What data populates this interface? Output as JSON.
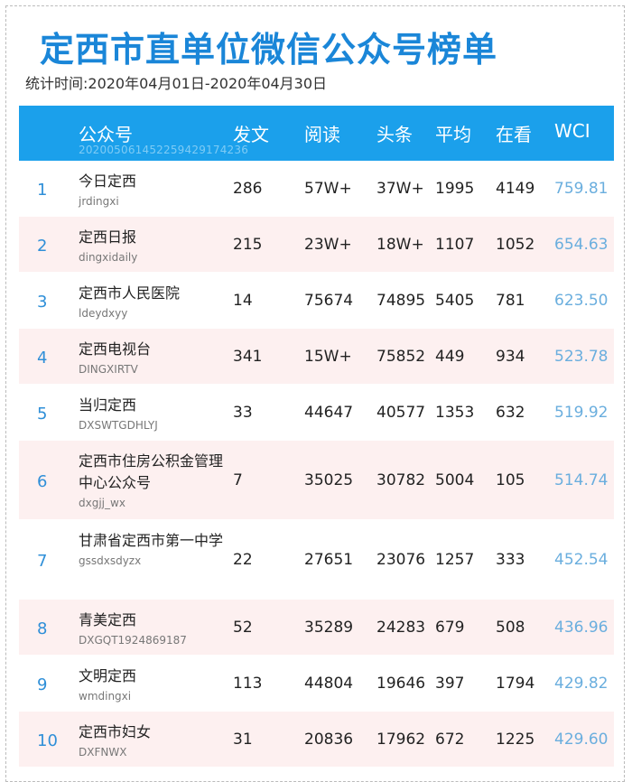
{
  "header": {
    "title": "定西市直单位微信公众号榜单",
    "subtitle": "统计时间:2020年04月01日-2020年04月30日"
  },
  "table": {
    "columns": {
      "name": "公众号",
      "fawen": "发文",
      "yuedu": "阅读",
      "toutiao": "头条",
      "pingjun": "平均",
      "zaikan": "在看",
      "wci": "WCI"
    },
    "header_id": "20200506145225942917423​6",
    "rows": [
      {
        "rank": "1",
        "name": "今日定西",
        "account": "jrdingxi",
        "fawen": "286",
        "yuedu": "57W+",
        "toutiao": "37W+",
        "pingjun": "1995",
        "zaikan": "4149",
        "wci": "759.81"
      },
      {
        "rank": "2",
        "name": "定西日报",
        "account": "dingxidaily",
        "fawen": "215",
        "yuedu": "23W+",
        "toutiao": "18W+",
        "pingjun": "1107",
        "zaikan": "1052",
        "wci": "654.63"
      },
      {
        "rank": "3",
        "name": "定西市人民医院",
        "account": "ldeydxyy",
        "fawen": "14",
        "yuedu": "75674",
        "toutiao": "74895",
        "pingjun": "5405",
        "zaikan": "781",
        "wci": "623.50"
      },
      {
        "rank": "4",
        "name": "定西电视台",
        "account": "DINGXIRTV",
        "fawen": "341",
        "yuedu": "15W+",
        "toutiao": "75852",
        "pingjun": "449",
        "zaikan": "934",
        "wci": "523.78"
      },
      {
        "rank": "5",
        "name": "当归定西",
        "account": "DXSWTGDHLYJ",
        "fawen": "33",
        "yuedu": "44647",
        "toutiao": "40577",
        "pingjun": "1353",
        "zaikan": "632",
        "wci": "519.92"
      },
      {
        "rank": "6",
        "name": "定西市住房公积金管理中心公众号",
        "account": "dxgjj_wx",
        "fawen": "7",
        "yuedu": "35025",
        "toutiao": "30782",
        "pingjun": "5004",
        "zaikan": "105",
        "wci": "514.74"
      },
      {
        "rank": "7",
        "name": "甘肃省定西市第一中学",
        "account": "gssdxsdyzx",
        "fawen": "22",
        "yuedu": "27651",
        "toutiao": "23076",
        "pingjun": "1257",
        "zaikan": "333",
        "wci": "452.54"
      },
      {
        "rank": "8",
        "name": "青美定西",
        "account": "DXGQT1924869187",
        "fawen": "52",
        "yuedu": "35289",
        "toutiao": "24283",
        "pingjun": "679",
        "zaikan": "508",
        "wci": "436.96"
      },
      {
        "rank": "9",
        "name": "文明定西",
        "account": "wmdingxi",
        "fawen": "113",
        "yuedu": "44804",
        "toutiao": "19646",
        "pingjun": "397",
        "zaikan": "1794",
        "wci": "429.82"
      },
      {
        "rank": "10",
        "name": "定西市妇女",
        "account": "DXFNWX",
        "fawen": "31",
        "yuedu": "20836",
        "toutiao": "17962",
        "pingjun": "672",
        "zaikan": "1225",
        "wci": "429.60"
      }
    ]
  },
  "colors": {
    "title": "#1a86d8",
    "header_bg": "#1ba0eb",
    "row_alt_bg": "#fdf0f0",
    "rank": "#2f8fd8",
    "wci": "#6aaede"
  }
}
